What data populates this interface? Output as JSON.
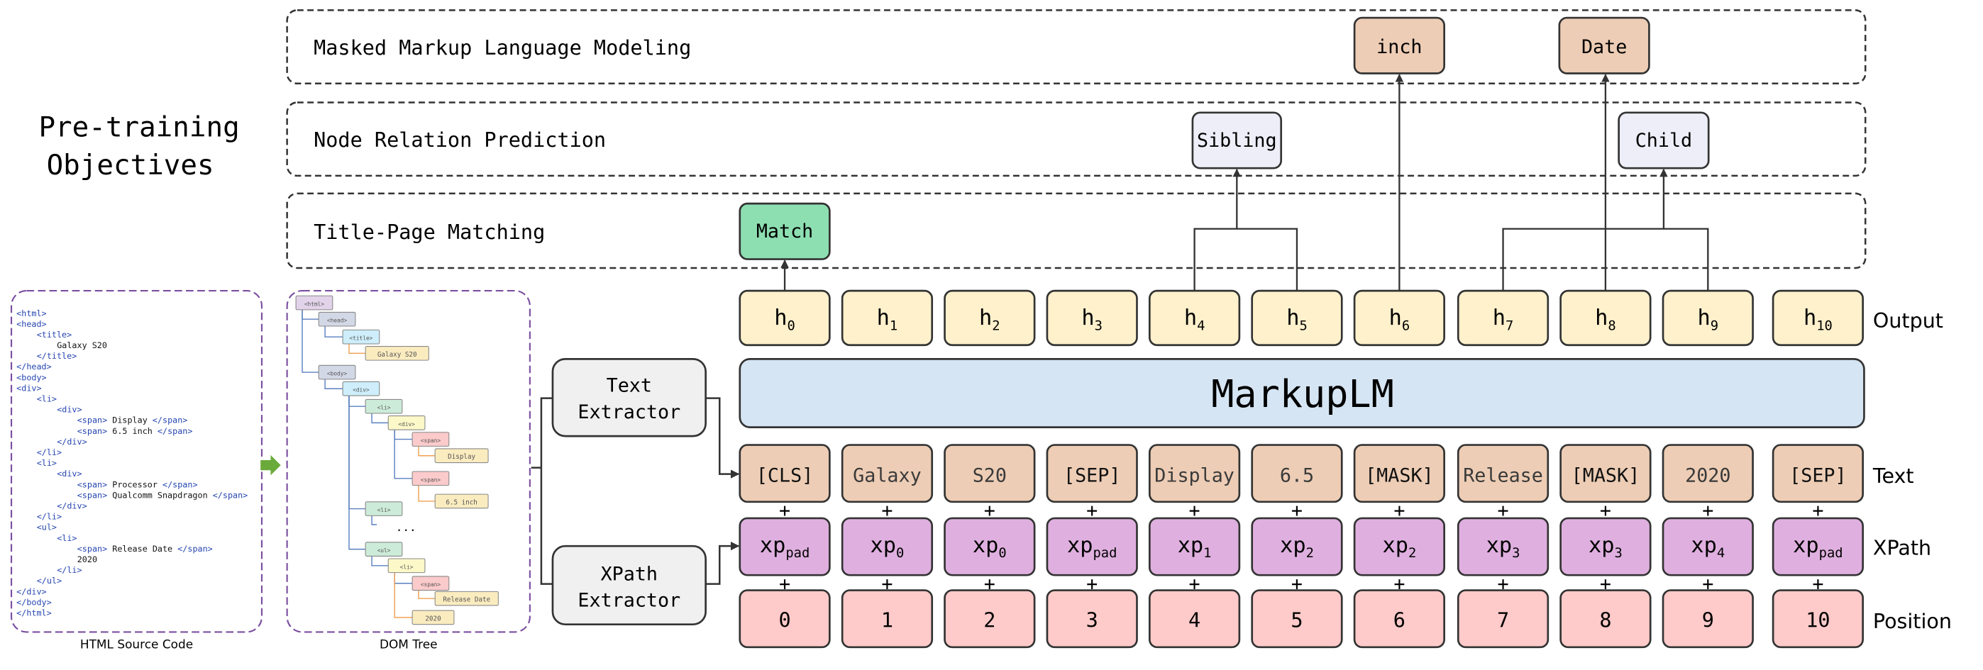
{
  "side_title": [
    "Pre-training",
    "Objectives"
  ],
  "objectives": [
    {
      "label": "Masked Markup Language Modeling"
    },
    {
      "label": "Node Relation Prediction"
    },
    {
      "label": "Title-Page Matching"
    }
  ],
  "predictions": {
    "match": "Match",
    "sibling": "Sibling",
    "child": "Child",
    "inch": "inch",
    "date": "Date"
  },
  "outputs": [
    {
      "base": "h",
      "sub": "0"
    },
    {
      "base": "h",
      "sub": "1"
    },
    {
      "base": "h",
      "sub": "2"
    },
    {
      "base": "h",
      "sub": "3"
    },
    {
      "base": "h",
      "sub": "4"
    },
    {
      "base": "h",
      "sub": "5"
    },
    {
      "base": "h",
      "sub": "6"
    },
    {
      "base": "h",
      "sub": "7"
    },
    {
      "base": "h",
      "sub": "8"
    },
    {
      "base": "h",
      "sub": "9"
    },
    {
      "base": "h",
      "sub": "10"
    }
  ],
  "model_name": "MarkupLM",
  "text_tokens": [
    "[CLS]",
    "Galaxy",
    "S20",
    "[SEP]",
    "Display",
    "6.5",
    "[MASK]",
    "Release",
    "[MASK]",
    "2020",
    "[SEP]"
  ],
  "xpath_tokens": [
    {
      "base": "xp",
      "sub": "pad"
    },
    {
      "base": "xp",
      "sub": "0"
    },
    {
      "base": "xp",
      "sub": "0"
    },
    {
      "base": "xp",
      "sub": "pad"
    },
    {
      "base": "xp",
      "sub": "1"
    },
    {
      "base": "xp",
      "sub": "2"
    },
    {
      "base": "xp",
      "sub": "2"
    },
    {
      "base": "xp",
      "sub": "3"
    },
    {
      "base": "xp",
      "sub": "3"
    },
    {
      "base": "xp",
      "sub": "4"
    },
    {
      "base": "xp",
      "sub": "pad"
    }
  ],
  "position_tokens": [
    "0",
    "1",
    "2",
    "3",
    "4",
    "5",
    "6",
    "7",
    "8",
    "9",
    "10"
  ],
  "plus_sign": "+",
  "row_labels": {
    "output": "Output",
    "text": "Text",
    "xpath": "XPath",
    "position": "Position"
  },
  "extractors": {
    "text": [
      "Text",
      "Extractor"
    ],
    "xpath": [
      "XPath",
      "Extractor"
    ]
  },
  "captions": {
    "source": "HTML Source Code",
    "dom": "DOM Tree"
  },
  "source_lines": [
    {
      "indent": 0,
      "open": "<html>",
      "text": "",
      "close": ""
    },
    {
      "indent": 0,
      "open": "<head>",
      "text": "",
      "close": ""
    },
    {
      "indent": 1,
      "open": "<title>",
      "text": "",
      "close": ""
    },
    {
      "indent": 2,
      "open": "",
      "text": "Galaxy S20",
      "close": ""
    },
    {
      "indent": 1,
      "open": "</title>",
      "text": "",
      "close": ""
    },
    {
      "indent": 0,
      "open": "</head>",
      "text": "",
      "close": ""
    },
    {
      "indent": 0,
      "open": "<body>",
      "text": "",
      "close": ""
    },
    {
      "indent": 0,
      "open": "<div>",
      "text": "",
      "close": ""
    },
    {
      "indent": 1,
      "open": "<li>",
      "text": "",
      "close": ""
    },
    {
      "indent": 2,
      "open": "<div>",
      "text": "",
      "close": ""
    },
    {
      "indent": 3,
      "open": "<span>",
      "text": " Display ",
      "close": "</span>"
    },
    {
      "indent": 3,
      "open": "<span>",
      "text": " 6.5 inch ",
      "close": "</span>"
    },
    {
      "indent": 2,
      "open": "</div>",
      "text": "",
      "close": ""
    },
    {
      "indent": 1,
      "open": "</li>",
      "text": "",
      "close": ""
    },
    {
      "indent": 1,
      "open": "<li>",
      "text": "",
      "close": ""
    },
    {
      "indent": 2,
      "open": "<div>",
      "text": "",
      "close": ""
    },
    {
      "indent": 3,
      "open": "<span>",
      "text": " Processor ",
      "close": "</span>"
    },
    {
      "indent": 3,
      "open": "<span>",
      "text": " Qualcomm Snapdragon ",
      "close": "</span>"
    },
    {
      "indent": 2,
      "open": "</div>",
      "text": "",
      "close": ""
    },
    {
      "indent": 1,
      "open": "</li>",
      "text": "",
      "close": ""
    },
    {
      "indent": 1,
      "open": "<ul>",
      "text": "",
      "close": ""
    },
    {
      "indent": 2,
      "open": "<li>",
      "text": "",
      "close": ""
    },
    {
      "indent": 3,
      "open": "<span>",
      "text": " Release Date ",
      "close": "</span>"
    },
    {
      "indent": 3,
      "open": "",
      "text": "2020",
      "close": ""
    },
    {
      "indent": 2,
      "open": "</li>",
      "text": "",
      "close": ""
    },
    {
      "indent": 1,
      "open": "</ul>",
      "text": "",
      "close": ""
    },
    {
      "indent": 0,
      "open": "</div>",
      "text": "",
      "close": ""
    },
    {
      "indent": 0,
      "open": "</body>",
      "text": "",
      "close": ""
    },
    {
      "indent": 0,
      "open": "</html>",
      "text": "",
      "close": ""
    }
  ],
  "dom_nodes": [
    {
      "label": "<html>",
      "kind": "html"
    },
    {
      "label": "<head>",
      "kind": "head"
    },
    {
      "label": "<title>",
      "kind": "title"
    },
    {
      "label": "Galaxy S20",
      "kind": "text"
    },
    {
      "label": "<body>",
      "kind": "head"
    },
    {
      "label": "<div>",
      "kind": "title"
    },
    {
      "label": "<li>",
      "kind": "li"
    },
    {
      "label": "<div>",
      "kind": "div"
    },
    {
      "label": "<span>",
      "kind": "span"
    },
    {
      "label": "Display",
      "kind": "text"
    },
    {
      "label": "<span>",
      "kind": "span"
    },
    {
      "label": "6.5 inch",
      "kind": "text"
    },
    {
      "label": "<li>",
      "kind": "li"
    },
    {
      "label": "<ul>",
      "kind": "li"
    },
    {
      "label": "<li>",
      "kind": "div"
    },
    {
      "label": "<span>",
      "kind": "span"
    },
    {
      "label": "Release Date",
      "kind": "text"
    },
    {
      "label": "2020",
      "kind": "text"
    }
  ],
  "dom_ellipsis": "...",
  "colors": {
    "output_fill": "#fff1cc",
    "text_fill": "#edcdb5",
    "xpath_fill": "#dfb0df",
    "position_fill": "#ffcaca",
    "model_fill": "#d6e5f3",
    "match_fill": "#8ddfb2",
    "relation_fill": "#eeeef9",
    "mlm_fill": "#edcdb5",
    "extractor_fill": "#f0f0f0",
    "frame_purple": "#7b4fa0",
    "tag_blue": "#2545b0",
    "arrow_green": "#6aaa3a",
    "dom_html": "#e3d3ea",
    "dom_head": "#d3d8e6",
    "dom_title": "#cdeefa",
    "dom_li": "#cdebd9",
    "dom_div": "#fdf8c8",
    "dom_span": "#fbcaca",
    "dom_text": "#fbecc0"
  }
}
